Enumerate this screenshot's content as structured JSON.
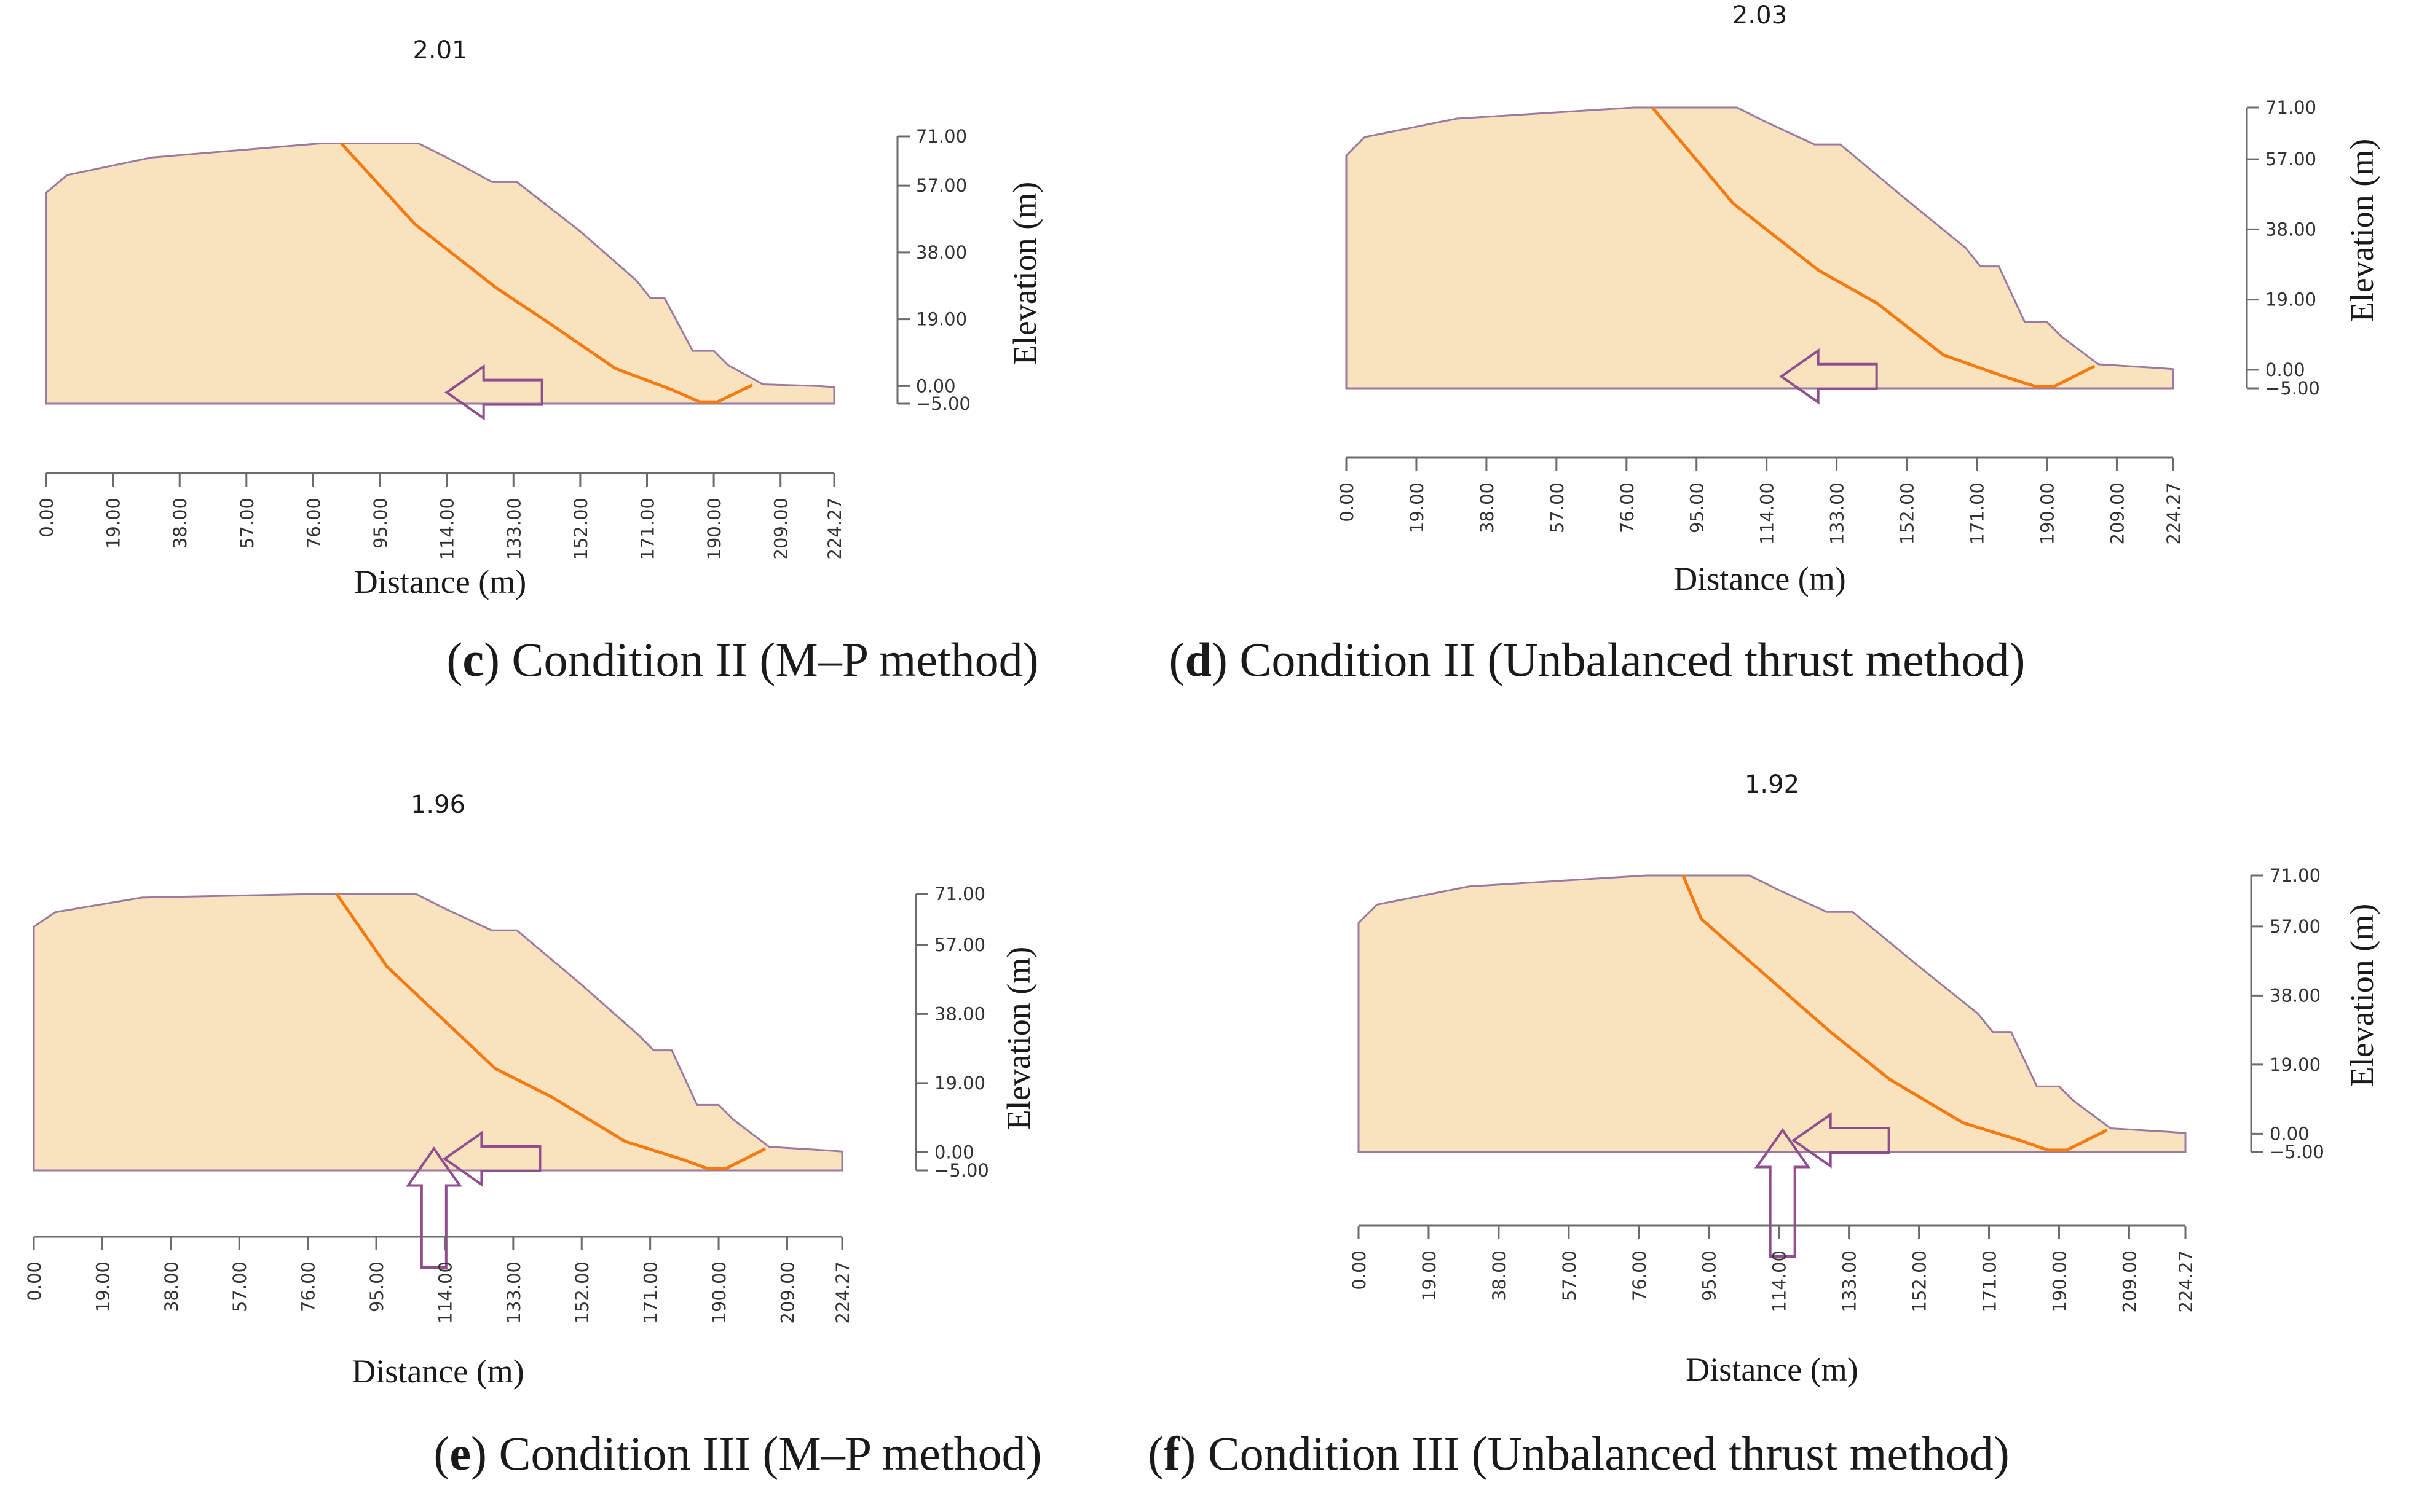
{
  "colors": {
    "soil_fill": "#f9e3bf",
    "soil_outline": "#9a7aa0",
    "slip_surface": "#f37b11",
    "arrow": "#8f4f8f",
    "axis": "#6b6b6b",
    "text": "#1a1a1a"
  },
  "icons": {
    "horizontal_load": "left-arrow-icon",
    "vertical_load": "up-arrow-icon"
  },
  "chart_data": [
    {
      "type": "area",
      "id": "c",
      "factor_of_safety": "2.01",
      "caption_letter": "c",
      "caption_text": " Condition II (M–P method)",
      "xlabel": "Distance (m)",
      "ylabel": "Elevation (m)",
      "xlim": [
        0,
        224.27
      ],
      "ylim": [
        -5,
        71
      ],
      "x_ticks": [
        "0.00",
        "19.00",
        "38.00",
        "57.00",
        "76.00",
        "95.00",
        "114.00",
        "133.00",
        "152.00",
        "171.00",
        "190.00",
        "209.00",
        "224.27"
      ],
      "y_ticks": [
        "71.00",
        "57.00",
        "38.00",
        "19.00",
        "0.00",
        "−5.00"
      ],
      "slope_profile": [
        [
          0,
          -5
        ],
        [
          0,
          55
        ],
        [
          6,
          60
        ],
        [
          30,
          65
        ],
        [
          78,
          69
        ],
        [
          106,
          69
        ],
        [
          114,
          65
        ],
        [
          127,
          58
        ],
        [
          134,
          58
        ],
        [
          152,
          44
        ],
        [
          168,
          30
        ],
        [
          172,
          25
        ],
        [
          176,
          25
        ],
        [
          184,
          10
        ],
        [
          190,
          10
        ],
        [
          194,
          6
        ],
        [
          204,
          0.5
        ],
        [
          220,
          0
        ],
        [
          224.27,
          -0.3
        ],
        [
          224.27,
          -5
        ]
      ],
      "slip_surface": [
        [
          84,
          69
        ],
        [
          105,
          46
        ],
        [
          128,
          28
        ],
        [
          143,
          18
        ],
        [
          162,
          5
        ],
        [
          178,
          -1
        ],
        [
          186,
          -4.5
        ],
        [
          191,
          -4.5
        ],
        [
          201,
          0.3
        ]
      ],
      "loads": [
        "horizontal"
      ]
    },
    {
      "type": "area",
      "id": "d",
      "factor_of_safety": "2.03",
      "caption_letter": "d",
      "caption_text": " Condition II (Unbalanced thrust method)",
      "xlabel": "Distance (m)",
      "ylabel": "Elevation (m)",
      "xlim": [
        0,
        224.27
      ],
      "ylim": [
        -5,
        71
      ],
      "x_ticks": [
        "0.00",
        "19.00",
        "38.00",
        "57.00",
        "76.00",
        "95.00",
        "114.00",
        "133.00",
        "152.00",
        "171.00",
        "190.00",
        "209.00",
        "224.27"
      ],
      "y_ticks": [
        "71.00",
        "57.00",
        "38.00",
        "19.00",
        "0.00",
        "−5.00"
      ],
      "slope_profile": [
        [
          0,
          -5
        ],
        [
          0,
          58
        ],
        [
          5,
          63
        ],
        [
          30,
          68
        ],
        [
          78,
          71
        ],
        [
          106,
          71
        ],
        [
          114,
          67
        ],
        [
          127,
          61
        ],
        [
          134,
          61
        ],
        [
          152,
          46
        ],
        [
          168,
          33
        ],
        [
          172,
          28
        ],
        [
          177,
          28
        ],
        [
          184,
          13
        ],
        [
          190,
          13
        ],
        [
          194,
          9
        ],
        [
          204,
          1.5
        ],
        [
          220,
          0.5
        ],
        [
          224.27,
          0.2
        ],
        [
          224.27,
          -5
        ]
      ],
      "slip_surface": [
        [
          83,
          71
        ],
        [
          105,
          45
        ],
        [
          128,
          27
        ],
        [
          144,
          18
        ],
        [
          162,
          4
        ],
        [
          179,
          -2
        ],
        [
          187,
          -4.5
        ],
        [
          192,
          -4.5
        ],
        [
          203,
          1
        ]
      ],
      "loads": [
        "horizontal"
      ]
    },
    {
      "type": "area",
      "id": "e",
      "factor_of_safety": "1.96",
      "caption_letter": "e",
      "caption_text": " Condition III (M–P method)",
      "xlabel": "Distance (m)",
      "ylabel": "Elevation (m)",
      "xlim": [
        0,
        224.27
      ],
      "ylim": [
        -5,
        71
      ],
      "x_ticks": [
        "0.00",
        "19.00",
        "38.00",
        "57.00",
        "76.00",
        "95.00",
        "114.00",
        "133.00",
        "152.00",
        "171.00",
        "190.00",
        "209.00",
        "224.27"
      ],
      "y_ticks": [
        "71.00",
        "57.00",
        "38.00",
        "19.00",
        "0.00",
        "−5.00"
      ],
      "slope_profile": [
        [
          0,
          -5
        ],
        [
          0,
          62
        ],
        [
          6,
          66
        ],
        [
          30,
          70
        ],
        [
          78,
          71
        ],
        [
          106,
          71
        ],
        [
          114,
          67
        ],
        [
          127,
          61
        ],
        [
          134,
          61
        ],
        [
          152,
          46
        ],
        [
          168,
          32
        ],
        [
          172,
          28
        ],
        [
          177,
          28
        ],
        [
          184,
          13
        ],
        [
          190,
          13
        ],
        [
          194,
          9
        ],
        [
          204,
          1.5
        ],
        [
          220,
          0.5
        ],
        [
          224.27,
          0.2
        ],
        [
          224.27,
          -5
        ]
      ],
      "slip_surface": [
        [
          84,
          71
        ],
        [
          98,
          51
        ],
        [
          128,
          23
        ],
        [
          144,
          15
        ],
        [
          164,
          3
        ],
        [
          180,
          -2
        ],
        [
          187,
          -4.5
        ],
        [
          192,
          -4.5
        ],
        [
          203,
          1
        ]
      ],
      "loads": [
        "horizontal",
        "vertical"
      ]
    },
    {
      "type": "area",
      "id": "f",
      "factor_of_safety": "1.92",
      "caption_letter": "f",
      "caption_text": " Condition III (Unbalanced thrust method)",
      "xlabel": "Distance (m)",
      "ylabel": "Elevation (m)",
      "xlim": [
        0,
        224.27
      ],
      "ylim": [
        -5,
        71
      ],
      "x_ticks": [
        "0.00",
        "19.00",
        "38.00",
        "57.00",
        "76.00",
        "95.00",
        "114.00",
        "133.00",
        "152.00",
        "171.00",
        "190.00",
        "209.00",
        "224.27"
      ],
      "y_ticks": [
        "71.00",
        "57.00",
        "38.00",
        "19.00",
        "0.00",
        "−5.00"
      ],
      "slope_profile": [
        [
          0,
          -5
        ],
        [
          0,
          58
        ],
        [
          5,
          63
        ],
        [
          30,
          68
        ],
        [
          78,
          71
        ],
        [
          106,
          71
        ],
        [
          114,
          67
        ],
        [
          127,
          61
        ],
        [
          134,
          61
        ],
        [
          152,
          46
        ],
        [
          168,
          33
        ],
        [
          172,
          28
        ],
        [
          177,
          28
        ],
        [
          184,
          13
        ],
        [
          190,
          13
        ],
        [
          194,
          9
        ],
        [
          204,
          1.5
        ],
        [
          220,
          0.5
        ],
        [
          224.27,
          0.2
        ],
        [
          224.27,
          -5
        ]
      ],
      "slip_surface": [
        [
          88,
          71
        ],
        [
          93,
          59
        ],
        [
          128,
          28
        ],
        [
          144,
          15
        ],
        [
          164,
          3
        ],
        [
          180,
          -2
        ],
        [
          187,
          -4.5
        ],
        [
          192,
          -4.5
        ],
        [
          203,
          1
        ]
      ],
      "loads": [
        "horizontal",
        "vertical"
      ]
    }
  ]
}
